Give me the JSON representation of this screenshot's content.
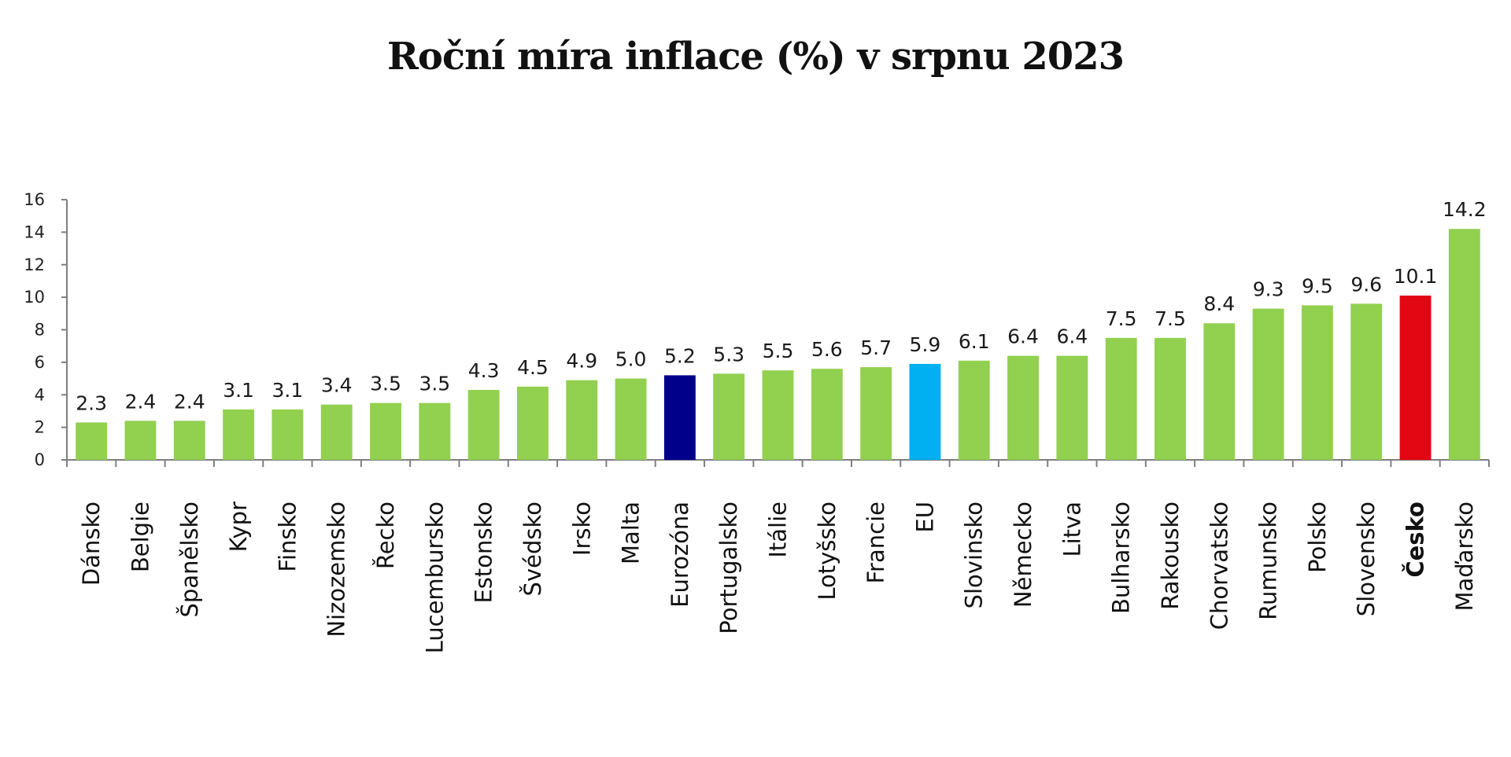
{
  "chart_data": {
    "type": "bar",
    "title": "Roční míra inflace (%) v srpnu 2023",
    "xlabel": "",
    "ylabel": "",
    "ylim": [
      0,
      16
    ],
    "yticks": [
      0,
      2,
      4,
      6,
      8,
      10,
      12,
      14,
      16
    ],
    "grid": false,
    "legend": "none",
    "categories": [
      "Dánsko",
      "Belgie",
      "Španělsko",
      "Kypr",
      "Finsko",
      "Nizozemsko",
      "Řecko",
      "Lucembursko",
      "Estonsko",
      "Švédsko",
      "Irsko",
      "Malta",
      "Eurozóna",
      "Portugalsko",
      "Itálie",
      "Lotyšsko",
      "Francie",
      "EU",
      "Slovinsko",
      "Německo",
      "Litva",
      "Bulharsko",
      "Rakousko",
      "Chorvatsko",
      "Rumunsko",
      "Polsko",
      "Slovensko",
      "Česko",
      "Maďarsko"
    ],
    "values": [
      2.3,
      2.4,
      2.4,
      3.1,
      3.1,
      3.4,
      3.5,
      3.5,
      4.3,
      4.5,
      4.9,
      5.0,
      5.2,
      5.3,
      5.5,
      5.6,
      5.7,
      5.9,
      6.1,
      6.4,
      6.4,
      7.5,
      7.5,
      8.4,
      9.3,
      9.5,
      9.6,
      10.1,
      14.2
    ],
    "value_labels": [
      "2.3",
      "2.4",
      "2.4",
      "3.1",
      "3.1",
      "3.4",
      "3.5",
      "3.5",
      "4.3",
      "4.5",
      "4.9",
      "5.0",
      "5.2",
      "5.3",
      "5.5",
      "5.6",
      "5.7",
      "5.9",
      "6.1",
      "6.4",
      "6.4",
      "7.5",
      "7.5",
      "8.4",
      "9.3",
      "9.5",
      "9.6",
      "10.1",
      "14.2"
    ],
    "colors": {
      "default": "#92d050",
      "Eurozóna": "#00008b",
      "EU": "#00b0f0",
      "Česko": "#e30613"
    },
    "highlight_label_color": {
      "Česko": "#e30613"
    }
  }
}
